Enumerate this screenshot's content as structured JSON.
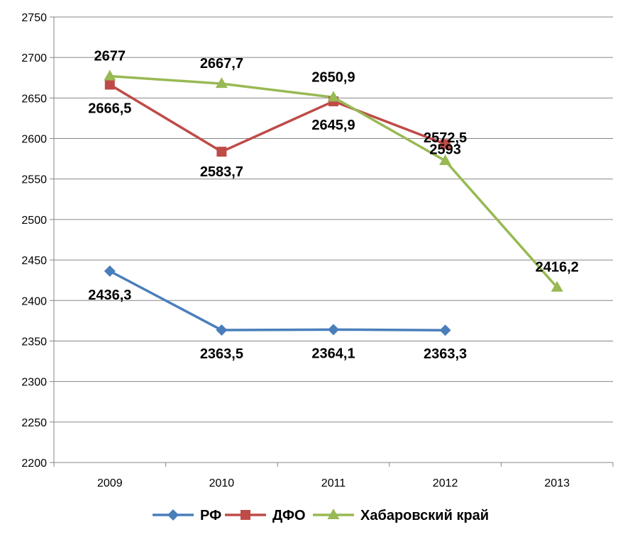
{
  "chart_data": {
    "type": "line",
    "categories": [
      "2009",
      "2010",
      "2011",
      "2012",
      "2013"
    ],
    "ylim": [
      2200,
      2750
    ],
    "ytick_step": 50,
    "grid": true,
    "legend": "bottom",
    "series": [
      {
        "name": "РФ",
        "color": "#4a7ebb",
        "marker": "diamond",
        "values": [
          2436.3,
          2363.5,
          2364.1,
          2363.3,
          null
        ],
        "labels": [
          "2436,3",
          "2363,5",
          "2364,1",
          "2363,3",
          ""
        ]
      },
      {
        "name": "ДФО",
        "color": "#be4b48",
        "marker": "square",
        "values": [
          2666.5,
          2583.7,
          2645.9,
          2593,
          null
        ],
        "labels": [
          "2666,5",
          "2583,7",
          "2645,9",
          "2593",
          ""
        ]
      },
      {
        "name": "Хабаровский край",
        "color": "#98b954",
        "marker": "triangle",
        "values": [
          2677,
          2667.7,
          2650.9,
          2572.5,
          2416.2
        ],
        "labels": [
          "2677",
          "2667,7",
          "2650,9",
          "2572,5",
          "2416,2"
        ]
      }
    ]
  }
}
